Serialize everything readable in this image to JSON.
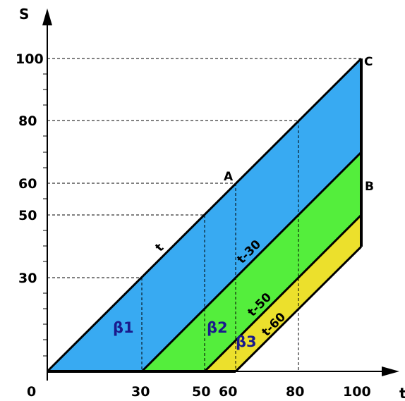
{
  "axes": {
    "y_label": "S",
    "x_label": "t",
    "origin": "0",
    "x_ticks": [
      "30",
      "50",
      "60",
      "80",
      "100"
    ],
    "y_ticks": [
      "30",
      "50",
      "60",
      "80",
      "100"
    ]
  },
  "points": {
    "A": "A",
    "B": "B",
    "C": "C"
  },
  "lines": {
    "t": "t",
    "t30": "t-30",
    "t50": "t-50",
    "t60": "t-60"
  },
  "regions": {
    "beta1": "β1",
    "beta2": "β2",
    "beta3": "β3"
  },
  "colors": {
    "blue": "#38aaf2",
    "green": "#54ee3c",
    "yellow": "#ece02c"
  }
}
